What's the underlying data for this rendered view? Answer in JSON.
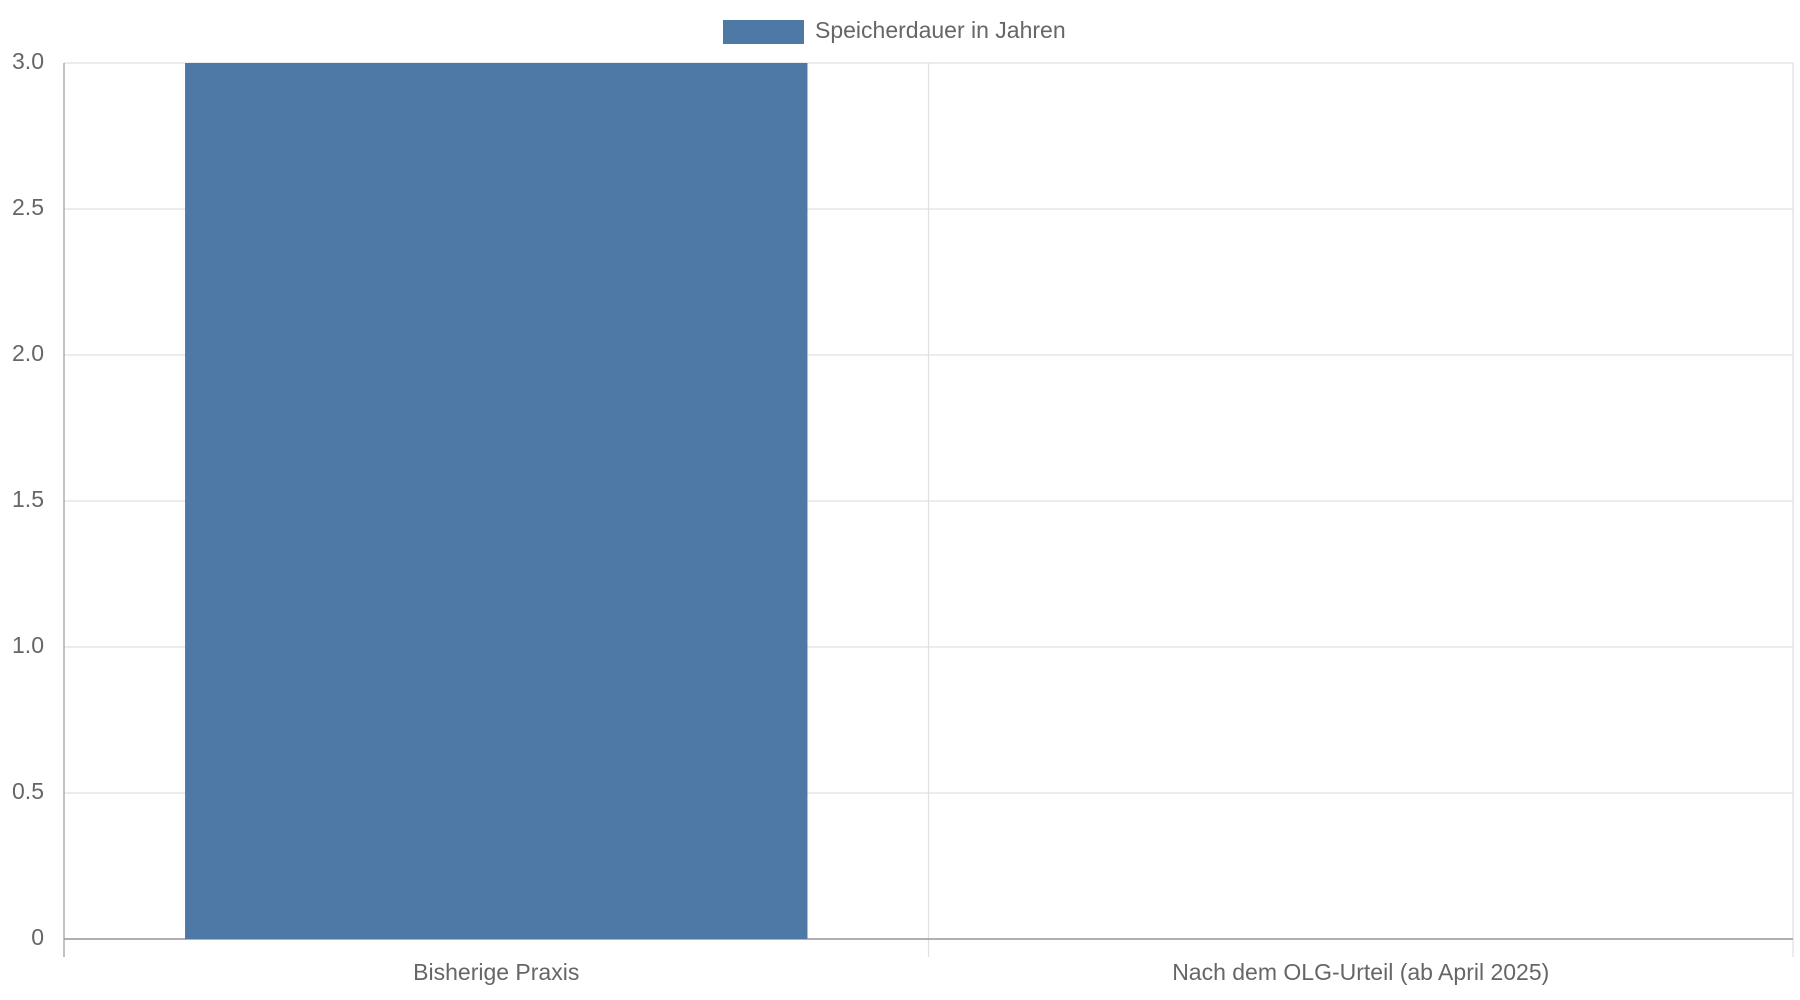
{
  "chart_data": {
    "type": "bar",
    "categories": [
      "Bisherige Praxis",
      "Nach dem OLG-Urteil (ab April 2025)"
    ],
    "series": [
      {
        "name": "Speicherdauer in Jahren",
        "color": "#4e79a7",
        "values": [
          3,
          0
        ]
      }
    ],
    "ylim": [
      0,
      3
    ],
    "yticks": [
      0,
      0.5,
      {
        "value": 1,
        "label": "1.0"
      },
      1.5,
      {
        "value": 2,
        "label": "2.0"
      },
      2.5,
      {
        "value": 3,
        "label": "3.0"
      }
    ],
    "grid": true,
    "legend": "top"
  }
}
